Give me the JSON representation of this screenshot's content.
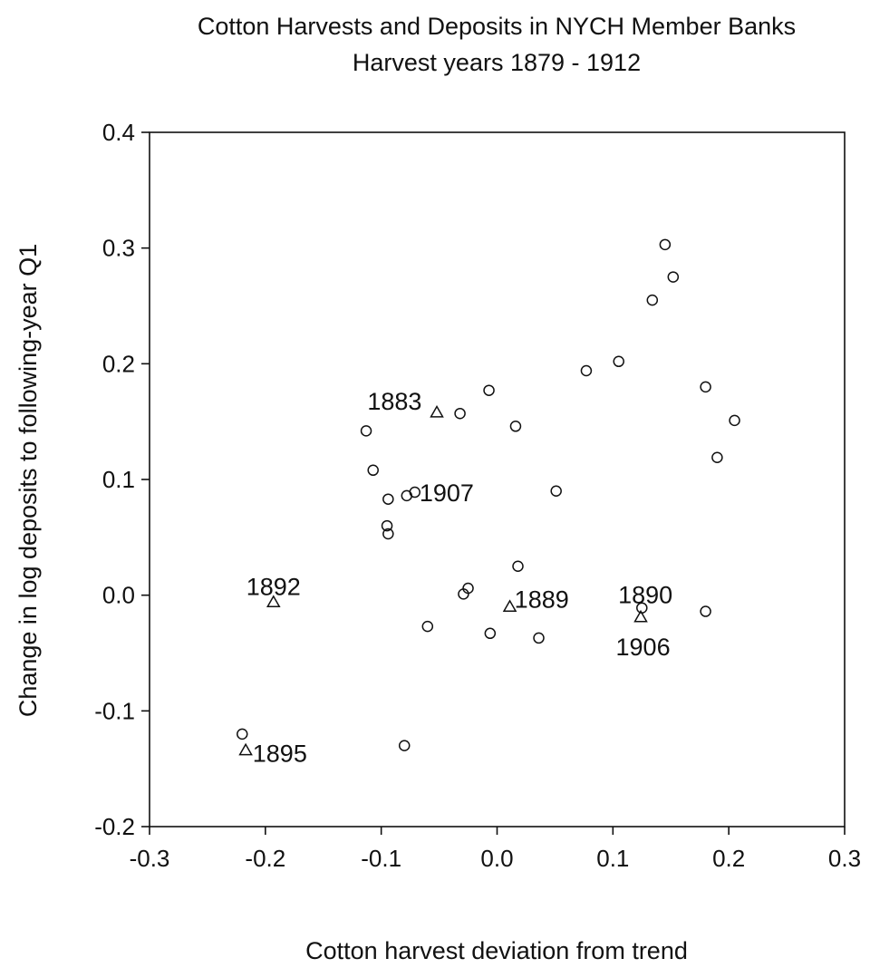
{
  "chart_data": {
    "type": "scatter",
    "title": "Cotton Harvests and Deposits in NYCH Member Banks",
    "subtitle": "Harvest years 1879 - 1912",
    "xlabel": "Cotton harvest deviation from trend",
    "ylabel": "Change in log deposits to following-year Q1",
    "xlim": [
      -0.3,
      0.3
    ],
    "ylim": [
      -0.2,
      0.4
    ],
    "x_ticks": [
      -0.3,
      -0.2,
      -0.1,
      0.0,
      0.1,
      0.2,
      0.3
    ],
    "x_tick_labels": [
      "-0.3",
      "-0.2",
      "-0.1",
      "0.0",
      "0.1",
      "0.2",
      "0.3"
    ],
    "y_ticks": [
      -0.2,
      -0.1,
      0.0,
      0.1,
      0.2,
      0.3,
      0.4
    ],
    "y_tick_labels": [
      "-0.2",
      "-0.1",
      "0.0",
      "0.1",
      "0.2",
      "0.3",
      "0.4"
    ],
    "grid": false,
    "legend": "none",
    "series": [
      {
        "marker": "circle",
        "points": [
          {
            "x": 0.145,
            "y": 0.303
          },
          {
            "x": 0.152,
            "y": 0.275
          },
          {
            "x": 0.134,
            "y": 0.255
          },
          {
            "x": 0.105,
            "y": 0.202
          },
          {
            "x": 0.077,
            "y": 0.194
          },
          {
            "x": 0.18,
            "y": 0.18
          },
          {
            "x": -0.007,
            "y": 0.177
          },
          {
            "x": -0.032,
            "y": 0.157
          },
          {
            "x": 0.016,
            "y": 0.146
          },
          {
            "x": 0.205,
            "y": 0.151
          },
          {
            "x": -0.113,
            "y": 0.142
          },
          {
            "x": 0.19,
            "y": 0.119
          },
          {
            "x": -0.107,
            "y": 0.108
          },
          {
            "x": 0.051,
            "y": 0.09
          },
          {
            "x": -0.094,
            "y": 0.083
          },
          {
            "x": -0.078,
            "y": 0.086
          },
          {
            "x": -0.071,
            "y": 0.089
          },
          {
            "x": -0.095,
            "y": 0.06
          },
          {
            "x": -0.094,
            "y": 0.053
          },
          {
            "x": 0.018,
            "y": 0.025
          },
          {
            "x": -0.025,
            "y": 0.006
          },
          {
            "x": -0.029,
            "y": 0.001
          },
          {
            "x": 0.125,
            "y": -0.011
          },
          {
            "x": 0.18,
            "y": -0.014
          },
          {
            "x": -0.06,
            "y": -0.027
          },
          {
            "x": -0.006,
            "y": -0.033
          },
          {
            "x": 0.036,
            "y": -0.037
          },
          {
            "x": -0.22,
            "y": -0.12
          },
          {
            "x": -0.08,
            "y": -0.13
          }
        ]
      },
      {
        "marker": "triangle",
        "points": [
          {
            "x": -0.052,
            "y": 0.158,
            "label": "1883"
          },
          {
            "x": -0.193,
            "y": -0.006,
            "label": "1892"
          },
          {
            "x": 0.011,
            "y": -0.01,
            "label": "1889"
          },
          {
            "x": 0.124,
            "y": -0.019,
            "label": "1906"
          },
          {
            "x": -0.217,
            "y": -0.134,
            "label": "1895"
          }
        ]
      }
    ],
    "annotations": [
      {
        "text": "1883",
        "x": -0.065,
        "y": 0.168,
        "anchor": "end"
      },
      {
        "text": "1907",
        "x": -0.067,
        "y": 0.089,
        "anchor": "start"
      },
      {
        "text": "1892",
        "x": -0.193,
        "y": 0.008,
        "anchor": "middle"
      },
      {
        "text": "1889",
        "x": 0.015,
        "y": -0.003,
        "anchor": "start"
      },
      {
        "text": "1890",
        "x": 0.128,
        "y": 0.001,
        "anchor": "middle"
      },
      {
        "text": "1906",
        "x": 0.126,
        "y": -0.044,
        "anchor": "middle"
      },
      {
        "text": "1895",
        "x": -0.211,
        "y": -0.136,
        "anchor": "start"
      }
    ]
  }
}
